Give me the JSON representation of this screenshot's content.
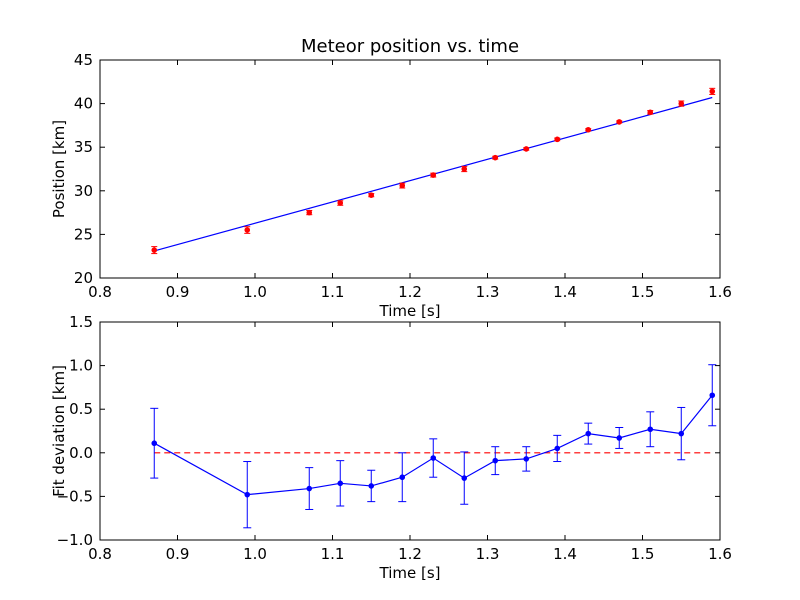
{
  "chart_data": [
    {
      "type": "scatter",
      "title": "Meteor position vs. time",
      "xlabel": "Time [s]",
      "ylabel": "Position [km]",
      "xlim": [
        0.8,
        1.6
      ],
      "ylim": [
        20,
        45
      ],
      "x_ticks": [
        "0.8",
        "0.9",
        "1.0",
        "1.1",
        "1.2",
        "1.3",
        "1.4",
        "1.5",
        "1.6"
      ],
      "y_ticks": [
        "20",
        "25",
        "30",
        "35",
        "40",
        "45"
      ],
      "grid": false,
      "colors": {
        "points": "#ff0000",
        "fit_line": "#0000ff"
      },
      "points": {
        "x": [
          0.87,
          0.99,
          1.07,
          1.11,
          1.15,
          1.19,
          1.23,
          1.27,
          1.31,
          1.35,
          1.39,
          1.43,
          1.47,
          1.51,
          1.55,
          1.59
        ],
        "y": [
          23.2,
          25.5,
          27.5,
          28.6,
          29.5,
          30.6,
          31.8,
          32.5,
          33.8,
          34.8,
          35.9,
          37.0,
          37.9,
          39.0,
          40.0,
          41.4
        ],
        "yerr": [
          0.4,
          0.38,
          0.24,
          0.26,
          0.18,
          0.28,
          0.22,
          0.3,
          0.16,
          0.14,
          0.15,
          0.12,
          0.12,
          0.2,
          0.3,
          0.35
        ]
      },
      "fit_line": {
        "x": [
          0.87,
          1.59
        ],
        "y": [
          23.1,
          40.7
        ]
      }
    },
    {
      "type": "line",
      "title": "",
      "xlabel": "Time [s]",
      "ylabel": "Fit deviation [km]",
      "xlim": [
        0.8,
        1.6
      ],
      "ylim": [
        -1.0,
        1.5
      ],
      "x_ticks": [
        "0.8",
        "0.9",
        "1.0",
        "1.1",
        "1.2",
        "1.3",
        "1.4",
        "1.5",
        "1.6"
      ],
      "y_ticks": [
        "−1.0",
        "−0.5",
        "0.0",
        "0.5",
        "1.0",
        "1.5"
      ],
      "grid": false,
      "colors": {
        "series": "#0000ff",
        "zero_line": "#ff0000"
      },
      "series": {
        "x": [
          0.87,
          0.99,
          1.07,
          1.11,
          1.15,
          1.19,
          1.23,
          1.27,
          1.31,
          1.35,
          1.39,
          1.43,
          1.47,
          1.51,
          1.55,
          1.59
        ],
        "y": [
          0.11,
          -0.48,
          -0.41,
          -0.35,
          -0.38,
          -0.28,
          -0.06,
          -0.29,
          -0.09,
          -0.07,
          0.05,
          0.22,
          0.17,
          0.27,
          0.22,
          0.66
        ],
        "yerr": [
          0.4,
          0.38,
          0.24,
          0.26,
          0.18,
          0.28,
          0.22,
          0.3,
          0.16,
          0.14,
          0.15,
          0.12,
          0.12,
          0.2,
          0.3,
          0.35
        ]
      },
      "reference_line": {
        "y": 0.0,
        "style": "dashed"
      }
    }
  ]
}
